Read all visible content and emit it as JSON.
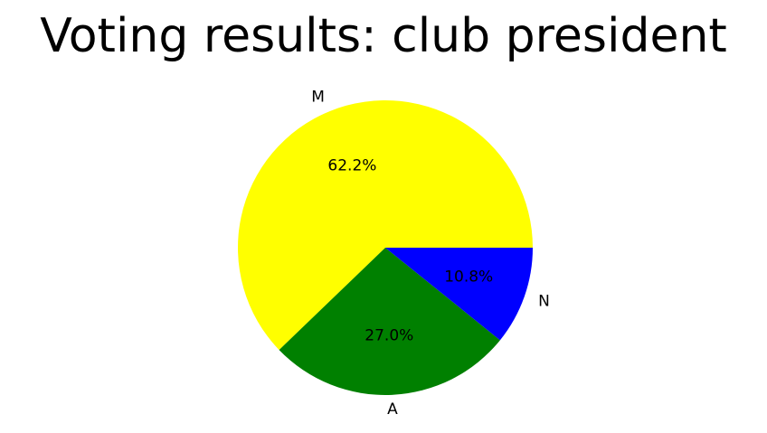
{
  "chart_data": {
    "type": "pie",
    "title": "Voting results: club president",
    "categories": [
      "M",
      "A",
      "N"
    ],
    "values": [
      62.2,
      27.0,
      10.8
    ],
    "percent_labels": [
      "62.2%",
      "27.0%",
      "10.8%"
    ],
    "colors": [
      "#ffff00",
      "#008000",
      "#0000ff"
    ],
    "start_angle_deg": 0,
    "direction": "counterclockwise",
    "legend": "none"
  }
}
